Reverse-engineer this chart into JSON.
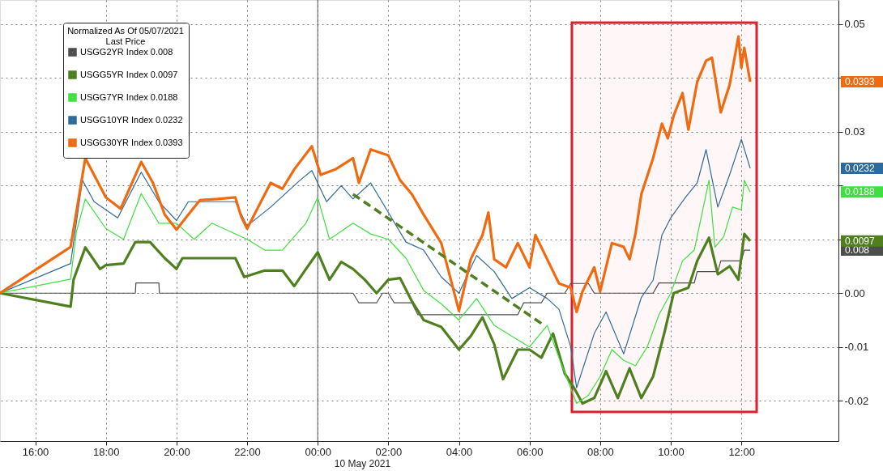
{
  "chart_data": {
    "type": "line",
    "legend_title": "Normalized As Of 05/07/2021\nLast Price",
    "legend": "top left",
    "grid": true,
    "xlim": [
      "2021-05-09T15:00",
      "2021-05-10T14:45"
    ],
    "xticks": [
      {
        "value": "2021-05-09T16:00",
        "label": "16:00"
      },
      {
        "value": "2021-05-09T18:00",
        "label": "18:00"
      },
      {
        "value": "2021-05-09T20:00",
        "label": "20:00"
      },
      {
        "value": "2021-05-09T22:00",
        "label": "22:00"
      },
      {
        "value": "2021-05-10T00:00",
        "label": "00:00"
      },
      {
        "value": "2021-05-10T02:00",
        "label": "02:00"
      },
      {
        "value": "2021-05-10T04:00",
        "label": "04:00"
      },
      {
        "value": "2021-05-10T06:00",
        "label": "06:00"
      },
      {
        "value": "2021-05-10T08:00",
        "label": "08:00"
      },
      {
        "value": "2021-05-10T10:00",
        "label": "10:00"
      },
      {
        "value": "2021-05-10T12:00",
        "label": "12:00"
      }
    ],
    "ylim": [
      -0.0275,
      0.0545
    ],
    "yticks": [
      -0.02,
      -0.01,
      {
        "value": 0,
        "label": "0.00"
      },
      {
        "value": 0.01,
        "label": null
      },
      {
        "value": 0.02,
        "label": null
      },
      0.03,
      {
        "value": 0.04,
        "label": null
      },
      0.05
    ],
    "series": [
      {
        "name": "USGG2YR Index 0.008",
        "color": "#4d4d4d",
        "x": [
          "2021-05-09T15:00",
          "2021-05-09T17:00",
          "2021-05-09T18:50",
          "2021-05-09T18:51",
          "2021-05-09T19:30",
          "2021-05-09T19:31",
          "2021-05-10T01:00",
          "2021-05-10T01:10",
          "2021-05-10T01:40",
          "2021-05-10T01:50",
          "2021-05-10T02:00",
          "2021-05-10T02:10",
          "2021-05-10T02:40",
          "2021-05-10T02:50",
          "2021-05-10T05:40",
          "2021-05-10T05:50",
          "2021-05-10T06:20",
          "2021-05-10T06:30",
          "2021-05-10T07:00",
          "2021-05-10T07:10",
          "2021-05-10T07:40",
          "2021-05-10T07:50",
          "2021-05-10T09:30",
          "2021-05-10T09:40",
          "2021-05-10T10:40",
          "2021-05-10T10:45",
          "2021-05-10T11:20",
          "2021-05-10T11:25",
          "2021-05-10T12:00",
          "2021-05-10T12:05",
          "2021-05-10T12:15"
        ],
        "values": [
          0,
          0,
          0,
          0.0019,
          0.0019,
          0,
          0,
          -0.0018,
          -0.0018,
          0,
          0,
          -0.0018,
          -0.0018,
          -0.004,
          -0.004,
          -0.0018,
          -0.0018,
          0,
          0,
          0.0018,
          0.0018,
          0,
          0,
          0.0019,
          0.0019,
          0.004,
          0.004,
          0.006,
          0.006,
          0.008,
          0.008
        ]
      },
      {
        "name": "USGG5YR Index 0.0097",
        "color": "#4f7f1f",
        "x": [
          "2021-05-09T15:00",
          "2021-05-09T17:00",
          "2021-05-09T17:05",
          "2021-05-09T17:25",
          "2021-05-09T17:50",
          "2021-05-09T18:00",
          "2021-05-09T18:30",
          "2021-05-09T18:50",
          "2021-05-09T19:15",
          "2021-05-09T19:40",
          "2021-05-09T20:00",
          "2021-05-09T20:10",
          "2021-05-09T21:40",
          "2021-05-09T21:55",
          "2021-05-09T22:30",
          "2021-05-09T23:00",
          "2021-05-09T23:20",
          "2021-05-09T23:40",
          "2021-05-10T00:00",
          "2021-05-10T00:20",
          "2021-05-10T00:40",
          "2021-05-10T01:00",
          "2021-05-10T01:20",
          "2021-05-10T01:40",
          "2021-05-10T02:00",
          "2021-05-10T02:20",
          "2021-05-10T02:40",
          "2021-05-10T03:00",
          "2021-05-10T03:30",
          "2021-05-10T04:00",
          "2021-05-10T04:20",
          "2021-05-10T04:40",
          "2021-05-10T05:00",
          "2021-05-10T05:15",
          "2021-05-10T05:40",
          "2021-05-10T06:00",
          "2021-05-10T06:20",
          "2021-05-10T06:40",
          "2021-05-10T07:00",
          "2021-05-10T07:15",
          "2021-05-10T07:30",
          "2021-05-10T07:50",
          "2021-05-10T08:10",
          "2021-05-10T08:30",
          "2021-05-10T08:50",
          "2021-05-10T09:10",
          "2021-05-10T09:30",
          "2021-05-10T09:50",
          "2021-05-10T10:05",
          "2021-05-10T10:30",
          "2021-05-10T10:45",
          "2021-05-10T11:05",
          "2021-05-10T11:20",
          "2021-05-10T11:40",
          "2021-05-10T11:55",
          "2021-05-10T12:05",
          "2021-05-10T12:15"
        ],
        "values": [
          0,
          -0.0025,
          0.0025,
          0.0085,
          0.0045,
          0.0052,
          0.0055,
          0.0095,
          0.0095,
          0.0065,
          0.0045,
          0.0065,
          0.0065,
          0.003,
          0.0042,
          0.0042,
          0.0013,
          0.0045,
          0.0076,
          0.0025,
          0.0058,
          0.0045,
          0.0025,
          0.0,
          0.0025,
          0.0028,
          -0.0015,
          -0.005,
          -0.0063,
          -0.0105,
          -0.008,
          -0.0045,
          -0.0095,
          -0.016,
          -0.0105,
          -0.0105,
          -0.012,
          -0.0075,
          -0.015,
          -0.0175,
          -0.0205,
          -0.0195,
          -0.0145,
          -0.0195,
          -0.014,
          -0.0195,
          -0.0155,
          -0.007,
          0.0,
          0.001,
          0.006,
          0.0103,
          0.0035,
          0.005,
          0.0025,
          0.011,
          0.0097
        ]
      },
      {
        "name": "USGG7YR Index 0.0188",
        "color": "#3ee03e",
        "x": [
          "2021-05-09T15:00",
          "2021-05-09T17:00",
          "2021-05-09T17:10",
          "2021-05-09T17:25",
          "2021-05-09T18:00",
          "2021-05-09T18:30",
          "2021-05-09T19:00",
          "2021-05-09T19:30",
          "2021-05-09T20:00",
          "2021-05-09T20:30",
          "2021-05-09T21:00",
          "2021-05-09T22:00",
          "2021-05-09T22:30",
          "2021-05-09T23:00",
          "2021-05-09T23:40",
          "2021-05-10T00:00",
          "2021-05-10T00:20",
          "2021-05-10T01:00",
          "2021-05-10T01:30",
          "2021-05-10T02:00",
          "2021-05-10T02:30",
          "2021-05-10T03:00",
          "2021-05-10T03:30",
          "2021-05-10T04:00",
          "2021-05-10T04:30",
          "2021-05-10T05:00",
          "2021-05-10T05:30",
          "2021-05-10T06:00",
          "2021-05-10T06:30",
          "2021-05-10T06:50",
          "2021-05-10T07:20",
          "2021-05-10T07:40",
          "2021-05-10T08:00",
          "2021-05-10T08:20",
          "2021-05-10T08:40",
          "2021-05-10T09:00",
          "2021-05-10T09:20",
          "2021-05-10T09:40",
          "2021-05-10T10:00",
          "2021-05-10T10:20",
          "2021-05-10T10:40",
          "2021-05-10T11:05",
          "2021-05-10T11:15",
          "2021-05-10T11:30",
          "2021-05-10T11:45",
          "2021-05-10T12:00",
          "2021-05-10T12:05",
          "2021-05-10T12:15"
        ],
        "values": [
          0,
          0.0026,
          0.0115,
          0.0175,
          0.012,
          0.01,
          0.0185,
          0.013,
          0.013,
          0.01,
          0.013,
          0.01,
          0.008,
          0.008,
          0.013,
          0.0178,
          0.01,
          0.013,
          0.011,
          0.01,
          0.0065,
          0.0005,
          -0.002,
          -0.005,
          -0.001,
          -0.006,
          -0.008,
          -0.01,
          -0.006,
          -0.012,
          -0.0205,
          -0.019,
          -0.0155,
          -0.0105,
          -0.0125,
          -0.0135,
          -0.01,
          -0.004,
          0.0,
          0.006,
          0.008,
          0.021,
          0.0085,
          0.0105,
          0.016,
          0.0155,
          0.021,
          0.0188
        ]
      },
      {
        "name": "USGG10YR Index 0.0232",
        "color": "#2f6a9c",
        "x": [
          "2021-05-09T15:00",
          "2021-05-09T17:00",
          "2021-05-09T17:20",
          "2021-05-09T17:40",
          "2021-05-09T18:00",
          "2021-05-09T18:20",
          "2021-05-09T19:00",
          "2021-05-09T19:30",
          "2021-05-09T20:00",
          "2021-05-09T20:20",
          "2021-05-09T21:00",
          "2021-05-09T21:40",
          "2021-05-09T22:00",
          "2021-05-09T22:40",
          "2021-05-09T23:30",
          "2021-05-09T23:50",
          "2021-05-10T00:15",
          "2021-05-10T00:40",
          "2021-05-10T01:00",
          "2021-05-10T01:30",
          "2021-05-10T02:00",
          "2021-05-10T02:30",
          "2021-05-10T03:00",
          "2021-05-10T03:30",
          "2021-05-10T04:00",
          "2021-05-10T04:30",
          "2021-05-10T05:00",
          "2021-05-10T05:30",
          "2021-05-10T06:00",
          "2021-05-10T06:30",
          "2021-05-10T06:50",
          "2021-05-10T07:10",
          "2021-05-10T07:20",
          "2021-05-10T07:50",
          "2021-05-10T08:10",
          "2021-05-10T08:40",
          "2021-05-10T09:10",
          "2021-05-10T09:30",
          "2021-05-10T09:45",
          "2021-05-10T10:00",
          "2021-05-10T10:25",
          "2021-05-10T10:45",
          "2021-05-10T11:00",
          "2021-05-10T11:20",
          "2021-05-10T11:40",
          "2021-05-10T12:00",
          "2021-05-10T12:15"
        ],
        "values": [
          0,
          0.0055,
          0.021,
          0.017,
          0.0155,
          0.014,
          0.0225,
          0.017,
          0.0135,
          0.017,
          0.017,
          0.017,
          0.0125,
          0.016,
          0.021,
          0.0228,
          0.017,
          0.02,
          0.0175,
          0.0205,
          0.015,
          0.0095,
          0.008,
          0.003,
          0.0,
          0.007,
          0.004,
          -0.001,
          0.001,
          -0.001,
          -0.003,
          -0.01,
          -0.0176,
          -0.0075,
          -0.0035,
          -0.0113,
          -0.0008,
          0.0024,
          0.0108,
          0.014,
          0.0178,
          0.0205,
          0.0267,
          0.016,
          0.022,
          0.0286,
          0.0232
        ]
      },
      {
        "name": "USGG30YR Index 0.0393",
        "color": "#f06a10",
        "x": [
          "2021-05-09T15:00",
          "2021-05-09T17:00",
          "2021-05-09T17:25",
          "2021-05-09T18:00",
          "2021-05-09T18:25",
          "2021-05-09T19:00",
          "2021-05-09T19:20",
          "2021-05-09T19:40",
          "2021-05-09T20:00",
          "2021-05-09T20:20",
          "2021-05-09T20:40",
          "2021-05-09T21:10",
          "2021-05-09T21:40",
          "2021-05-09T21:50",
          "2021-05-09T22:00",
          "2021-05-09T22:40",
          "2021-05-09T23:00",
          "2021-05-09T23:20",
          "2021-05-09T23:50",
          "2021-05-10T00:05",
          "2021-05-10T00:30",
          "2021-05-10T01:00",
          "2021-05-10T01:10",
          "2021-05-10T01:30",
          "2021-05-10T02:00",
          "2021-05-10T02:20",
          "2021-05-10T02:40",
          "2021-05-10T03:00",
          "2021-05-10T03:30",
          "2021-05-10T04:00",
          "2021-05-10T04:20",
          "2021-05-10T04:40",
          "2021-05-10T04:50",
          "2021-05-10T05:00",
          "2021-05-10T05:20",
          "2021-05-10T05:40",
          "2021-05-10T06:00",
          "2021-05-10T06:10",
          "2021-05-10T06:30",
          "2021-05-10T06:50",
          "2021-05-10T07:10",
          "2021-05-10T07:20",
          "2021-05-10T07:30",
          "2021-05-10T07:50",
          "2021-05-10T08:00",
          "2021-05-10T08:20",
          "2021-05-10T08:40",
          "2021-05-10T08:50",
          "2021-05-10T09:00",
          "2021-05-10T09:10",
          "2021-05-10T09:30",
          "2021-05-10T09:45",
          "2021-05-10T09:55",
          "2021-05-10T10:05",
          "2021-05-10T10:20",
          "2021-05-10T10:30",
          "2021-05-10T10:45",
          "2021-05-10T11:00",
          "2021-05-10T11:10",
          "2021-05-10T11:25",
          "2021-05-10T11:40",
          "2021-05-10T11:55",
          "2021-05-10T12:00",
          "2021-05-10T12:05",
          "2021-05-10T12:15"
        ],
        "values": [
          0,
          0.0086,
          0.0251,
          0.0178,
          0.0157,
          0.0244,
          0.0205,
          0.0146,
          0.0118,
          0.0146,
          0.0173,
          0.0175,
          0.0178,
          0.0142,
          0.012,
          0.0205,
          0.0194,
          0.023,
          0.0273,
          0.022,
          0.023,
          0.0251,
          0.0205,
          0.0267,
          0.0256,
          0.021,
          0.0184,
          0.0146,
          0.0093,
          -0.0033,
          0.0063,
          0.0108,
          0.015,
          0.0063,
          0.0048,
          0.0093,
          0.0048,
          0.0108,
          0.0063,
          0.0018,
          0.001,
          -0.0035,
          0.0003,
          0.0048,
          0.0003,
          0.0093,
          0.0086,
          0.0063,
          0.011,
          0.0184,
          0.0251,
          0.0315,
          0.0288,
          0.033,
          0.0372,
          0.0304,
          0.0393,
          0.0432,
          0.0438,
          0.0336,
          0.0387,
          0.0477,
          0.0419,
          0.0456,
          0.0393
        ]
      },
      {
        "type": "line",
        "color": "#4f7f1f",
        "line_style": "dashed",
        "x": [
          "2021-05-10T01:00",
          "2021-05-10T06:25"
        ],
        "values": [
          0.0184,
          -0.006
        ]
      }
    ],
    "ref_lines": [
      {
        "axis": "x",
        "value": "2021-05-10T00:00",
        "color": "#555555"
      }
    ],
    "bands": [
      {
        "axis": "x",
        "from": "2021-05-10T07:12",
        "to": "2021-05-10T12:26",
        "color": "#d9202f"
      }
    ],
    "annotations": [
      "10 May 2021",
      "0.008",
      "0.0097",
      "0.0188",
      "0.0232",
      "0.0393"
    ]
  }
}
